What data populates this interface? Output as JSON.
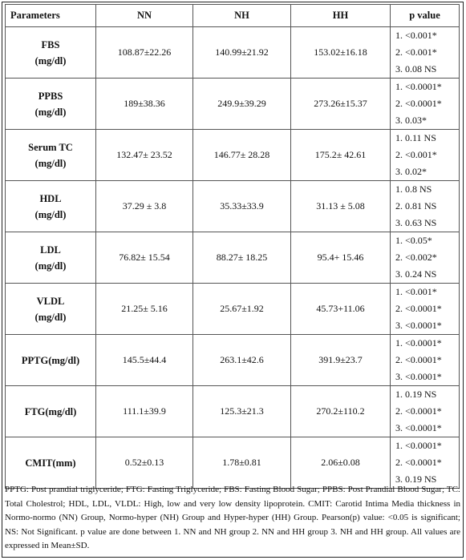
{
  "headers": [
    "Parameters",
    "NN",
    "NH",
    "HH",
    "p value"
  ],
  "rows": [
    {
      "param": [
        "FBS",
        "(mg/dl)"
      ],
      "nn": "108.87±22.26",
      "nh": "140.99±21.92",
      "hh": "153.02±16.18",
      "p": [
        "1. <0.001*",
        "2. <0.001*",
        "3. 0.08 NS"
      ]
    },
    {
      "param": [
        "PPBS",
        "(mg/dl)"
      ],
      "nn": "189±38.36",
      "nh": "249.9±39.29",
      "hh": "273.26±15.37",
      "p": [
        "1. <0.0001*",
        "2. <0.0001*",
        "3. 0.03*"
      ]
    },
    {
      "param": [
        "Serum TC",
        "(mg/dl)"
      ],
      "nn": "132.47± 23.52",
      "nh": "146.77± 28.28",
      "hh": "175.2± 42.61",
      "p": [
        "1. 0.11 NS",
        "2. <0.001*",
        "3. 0.02*"
      ]
    },
    {
      "param": [
        "HDL",
        "(mg/dl)"
      ],
      "nn": "37.29 ± 3.8",
      "nh": "35.33±33.9",
      "hh": "31.13 ± 5.08",
      "p": [
        "1. 0.8 NS",
        "2. 0.81 NS",
        "3. 0.63 NS"
      ]
    },
    {
      "param": [
        "LDL",
        "(mg/dl)"
      ],
      "nn": "76.82± 15.54",
      "nh": "88.27± 18.25",
      "hh": "95.4+ 15.46",
      "p": [
        "1. <0.05*",
        "2. <0.002*",
        "3. 0.24 NS"
      ]
    },
    {
      "param": [
        "VLDL",
        "(mg/dl)"
      ],
      "nn": "21.25± 5.16",
      "nh": "25.67±1.92",
      "hh": "45.73+11.06",
      "p": [
        "1. <0.001*",
        "2. <0.0001*",
        "3. <0.0001*"
      ]
    },
    {
      "param": [
        "PPTG(mg/dl)"
      ],
      "nn": "145.5±44.4",
      "nh": "263.1±42.6",
      "hh": "391.9±23.7",
      "p": [
        "1. <0.0001*",
        "2. <0.0001*",
        "3. <0.0001*"
      ]
    },
    {
      "param": [
        "FTG(mg/dl)"
      ],
      "nn": "111.1±39.9",
      "nh": "125.3±21.3",
      "hh": "270.2±110.2",
      "p": [
        "1. 0.19 NS",
        "2. <0.0001*",
        "3. <0.0001*"
      ]
    },
    {
      "param": [
        "CMIT(mm)"
      ],
      "nn": "0.52±0.13",
      "nh": "1.78±0.81",
      "hh": "2.06±0.08",
      "p": [
        "1. <0.0001*",
        "2. <0.0001*",
        "3. 0.19 NS"
      ]
    }
  ],
  "footnote": "PPTG: Post prandial triglyceride; FTG: Fasting Triglyceride; FBS: Fasting Blood Sugar; PPBS: Post Prandial Blood Sugar; TC: Total Cholestrol; HDL, LDL, VLDL: High, low and very low density lipoprotein. CMIT: Carotid Intima Media thickness in Normo-normo (NN) Group, Normo-hyper (NH) Group and Hyper-hyper (HH) Group. Pearson(p) value: <0.05 is significant; NS: Not Significant. p value are done between 1. NN and NH group 2. NN and HH group 3. NH and HH group. All values are expressed in Mean±SD."
}
